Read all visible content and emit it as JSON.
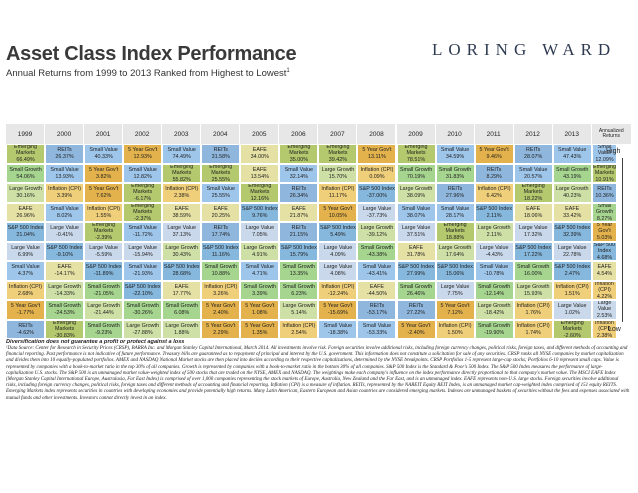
{
  "title": "Asset Class Index Performance",
  "subtitle": "Annual Returns from 1999 to 2013 Ranked from Highest to Lowest",
  "subtitle_sup": "1",
  "logo": "LORING WARD",
  "high_label": "High",
  "low_label": "Low",
  "annualized_header": "Annualized Returns",
  "colors": {
    "Emerging Markets": "#b4c86e",
    "REITs": "#8fb7dd",
    "Small Value": "#9ec5ea",
    "5 Year Gov't": "#e3b24c",
    "Small Growth": "#a6d58f",
    "Large Growth": "#cfe0a6",
    "Inflation (CPI)": "#f0cf7a",
    "EAFE": "#e5e0a3",
    "S&P 500 Index": "#86b7dc",
    "Large Value": "#c9d8ea"
  },
  "chart_data": {
    "type": "table",
    "years": [
      "1999",
      "2000",
      "2001",
      "2002",
      "2003",
      "2004",
      "2005",
      "2006",
      "2007",
      "2008",
      "2009",
      "2010",
      "2011",
      "2012",
      "2013"
    ],
    "columns": [
      [
        [
          "Emerging Markets",
          "66.49%"
        ],
        [
          "Small Growth",
          "54.06%"
        ],
        [
          "Large Growth",
          "30.16%"
        ],
        [
          "EAFE",
          "26.96%"
        ],
        [
          "S&P 500 Index",
          "21.04%"
        ],
        [
          "Large Value",
          "6.99%"
        ],
        [
          "Small Value",
          "4.37%"
        ],
        [
          "Inflation (CPI)",
          "2.68%"
        ],
        [
          "5 Year Gov't",
          "-1.77%"
        ],
        [
          "REITs",
          "-4.62%"
        ]
      ],
      [
        [
          "REITs",
          "26.37%"
        ],
        [
          "Small Value",
          "13.93%"
        ],
        [
          "Inflation (CPI)",
          "3.39%"
        ],
        [
          "Small Value",
          "8.02%"
        ],
        [
          "Large Value",
          "-0.41%"
        ],
        [
          "S&P 500 Index",
          "-9.10%"
        ],
        [
          "EAFE",
          "-14.17%"
        ],
        [
          "Large Growth",
          "-14.33%"
        ],
        [
          "Small Growth",
          "-24.53%"
        ],
        [
          "Emerging Markets",
          "-30.83%"
        ]
      ],
      [
        [
          "Small Value",
          "40.33%"
        ],
        [
          "5 Year Gov't",
          "3.82%"
        ],
        [
          "5 Year Gov't",
          "7.62%"
        ],
        [
          "Inflation (CPI)",
          "1.55%"
        ],
        [
          "Emerging Markets",
          "-2.39%"
        ],
        [
          "Large Value",
          "-5.59%"
        ],
        [
          "S&P 500 Index",
          "-11.89%"
        ],
        [
          "Small Growth",
          "-21.05%"
        ],
        [
          "Large Growth",
          "-21.44%"
        ],
        [
          "Small Growth",
          "-9.23%"
        ]
      ],
      [
        [
          "5 Year Gov't",
          "12.93%"
        ],
        [
          "Small Value",
          "12.82%"
        ],
        [
          "Emerging Markets",
          "-6.17%"
        ],
        [
          "Emerging Markets",
          "-2.37%"
        ],
        [
          "Small Value",
          "-11.72%"
        ],
        [
          "Large Value",
          "-15.94%"
        ],
        [
          "Small Value",
          "-21.93%"
        ],
        [
          "S&P 500 Index",
          "-22.10%"
        ],
        [
          "Small Growth",
          "-30.26%"
        ],
        [
          "Large Growth",
          "-27.88%"
        ]
      ],
      [
        [
          "Small Value",
          "74.49%"
        ],
        [
          "Emerging Markets",
          "55.82%"
        ],
        [
          "Inflation (CPI)",
          "2.38%"
        ],
        [
          "EAFE",
          "38.59%"
        ],
        [
          "Large Value",
          "37.13%"
        ],
        [
          "Large Growth",
          "30.43%"
        ],
        [
          "S&P 500 Index",
          "28.68%"
        ],
        [
          "EAFE",
          "17.77%"
        ],
        [
          "Small Growth",
          "6.08%"
        ],
        [
          "Large Growth",
          "1.88%"
        ]
      ],
      [
        [
          "REITs",
          "31.58%"
        ],
        [
          "Emerging Markets",
          "25.55%"
        ],
        [
          "Small Value",
          "25.55%"
        ],
        [
          "EAFE",
          "20.25%"
        ],
        [
          "REITs",
          "17.74%"
        ],
        [
          "S&P 500 Index",
          "11.16%"
        ],
        [
          "Small Growth",
          "10.88%"
        ],
        [
          "Inflation (CPI)",
          "3.26%"
        ],
        [
          "5 Year Gov't",
          "2.40%"
        ],
        [
          "5 Year Gov't",
          "2.29%"
        ]
      ],
      [
        [
          "EAFE",
          "34.00%"
        ],
        [
          "EAFE",
          "13.54%"
        ],
        [
          "Emerging Markets",
          "12.16%"
        ],
        [
          "S&P 500 Index",
          "9.76%"
        ],
        [
          "Large Value",
          "7.05%"
        ],
        [
          "Large Growth",
          "4.91%"
        ],
        [
          "Small Value",
          "4.71%"
        ],
        [
          "Small Growth",
          "3.39%"
        ],
        [
          "5 Year Gov't",
          "1.08%"
        ],
        [
          "5 Year Gov't",
          "1.35%"
        ]
      ],
      [
        [
          "Emerging Markets",
          "35.00%"
        ],
        [
          "Small Value",
          "32.14%"
        ],
        [
          "REITs",
          "26.34%"
        ],
        [
          "EAFE",
          "21.87%"
        ],
        [
          "REITs",
          "21.15%"
        ],
        [
          "S&P 500 Index",
          "15.79%"
        ],
        [
          "Small Growth",
          "13.35%"
        ],
        [
          "Small Growth",
          "6.23%"
        ],
        [
          "Large Growth",
          "5.14%"
        ],
        [
          "Inflation (CPI)",
          "2.54%"
        ]
      ],
      [
        [
          "Emerging Markets",
          "39.42%"
        ],
        [
          "Large Growth",
          "15.70%"
        ],
        [
          "Inflation (CPI)",
          "11.17%"
        ],
        [
          "5 Year Gov't",
          "10.05%"
        ],
        [
          "S&P 500 Index",
          "5.49%"
        ],
        [
          "Large Value",
          "4.09%"
        ],
        [
          "Large Value",
          "4.08%"
        ],
        [
          "Inflation (CPI)",
          "-12.24%"
        ],
        [
          "5 Year Gov't",
          "-15.69%"
        ],
        [
          "Small Value",
          "-18.38%"
        ]
      ],
      [
        [
          "5 Year Gov't",
          "13.11%"
        ],
        [
          "Inflation (CPI)",
          "0.09%"
        ],
        [
          "S&P 500 Index",
          "-37.00%"
        ],
        [
          "Large Value",
          "-37.73%"
        ],
        [
          "Large Growth",
          "-39.12%"
        ],
        [
          "Small Growth",
          "-43.38%"
        ],
        [
          "Small Value",
          "-43.41%"
        ],
        [
          "EAFE",
          "-44.50%"
        ],
        [
          "REITs",
          "-53.17%"
        ],
        [
          "Small Value",
          "-53.33%"
        ]
      ],
      [
        [
          "Emerging Markets",
          "78.51%"
        ],
        [
          "Small Growth",
          "70.19%"
        ],
        [
          "Large Growth",
          "38.09%"
        ],
        [
          "Small Value",
          "38.07%"
        ],
        [
          "Large Value",
          "37.51%"
        ],
        [
          "EAFE",
          "31.78%"
        ],
        [
          "S&P 500 Index",
          "27.99%"
        ],
        [
          "Small Growth",
          "26.46%"
        ],
        [
          "REITs",
          "27.22%"
        ],
        [
          "5 Year Gov't",
          "-2.40%"
        ]
      ],
      [
        [
          "Small Value",
          "34.59%"
        ],
        [
          "Small Growth",
          "31.83%"
        ],
        [
          "REITs",
          "27.96%"
        ],
        [
          "Small Value",
          "28.17%"
        ],
        [
          "Emerging Markets",
          "18.88%"
        ],
        [
          "Large Growth",
          "17.64%"
        ],
        [
          "S&P 500 Index",
          "15.06%"
        ],
        [
          "Large Value",
          "7.75%"
        ],
        [
          "5 Year Gov't",
          "7.12%"
        ],
        [
          "Inflation (CPI)",
          "1.50%"
        ]
      ],
      [
        [
          "5 Year Gov't",
          "9.46%"
        ],
        [
          "REITs",
          "8.29%"
        ],
        [
          "Inflation (CPI)",
          "6.42%"
        ],
        [
          "S&P 500 Index",
          "2.11%"
        ],
        [
          "Large Growth",
          "2.11%"
        ],
        [
          "Large Value",
          "-4.43%"
        ],
        [
          "Small Value",
          "-10.78%"
        ],
        [
          "Small Growth",
          "-12.14%"
        ],
        [
          "Large Growth",
          "-18.42%"
        ],
        [
          "Small Growth",
          "-19.90%"
        ]
      ],
      [
        [
          "REITs",
          "28.07%"
        ],
        [
          "Small Value",
          "20.57%"
        ],
        [
          "Emerging Markets",
          "18.22%"
        ],
        [
          "EAFE",
          "18.06%"
        ],
        [
          "Large Value",
          "17.32%"
        ],
        [
          "S&P 500 Index",
          "17.22%"
        ],
        [
          "Small Growth",
          "16.00%"
        ],
        [
          "Large Growth",
          "15.93%"
        ],
        [
          "Inflation (CPI)",
          "1.76%"
        ],
        [
          "Inflation (CPI)",
          "1.74%"
        ]
      ],
      [
        [
          "Small Value",
          "47.43%"
        ],
        [
          "Small Growth",
          "43.19%"
        ],
        [
          "Large Growth",
          "40.23%"
        ],
        [
          "EAFE",
          "33.42%"
        ],
        [
          "S&P 500 Index",
          "32.39%"
        ],
        [
          "Large Value",
          "22.78%"
        ],
        [
          "S&P 500 Index",
          "2.47%"
        ],
        [
          "Inflation (CPI)",
          "1.51%"
        ],
        [
          "Large Value",
          "1.02%"
        ],
        [
          "Emerging Markets",
          "-2.60%"
        ]
      ]
    ],
    "annualized": [
      [
        "Small Value",
        "12.09%"
      ],
      [
        "Emerging Markets",
        "10.91%"
      ],
      [
        "REITs",
        "10.36%"
      ],
      [
        "Small Growth",
        "8.27%"
      ],
      [
        "5 Year Gov't",
        "5.03%"
      ],
      [
        "S&P 500 Index",
        "4.68%"
      ],
      [
        "EAFE",
        "4.54%"
      ],
      [
        "Inflation (CPI)",
        "4.22%"
      ],
      [
        "Large Value",
        "2.53%"
      ],
      [
        "Inflation (CPI)",
        "2.38%"
      ]
    ]
  },
  "footnote_title": "Diversification does not guarantee a profit or protect against a loss",
  "footnote": "¹Data Source: Center for Research in Security Prices (CRSP), BARRA Inc. and Morgan Stanley Capital International, March 2014. All investments involve risk. Foreign securities involve additional risks, including foreign currency changes, political risks, foreign taxes, and different methods of accounting and financial reporting. Past performance is not indicative of future performance. Treasury bills are guaranteed as to repayment of principal and interest by the U.S. government. This information does not constitute a solicitation for sale of any securities. CRSP ranks all NYSE companies by market capitalization and divides them into 10 equally-populated portfolios. AMEX and NASDAQ National Market stocks are then placed into deciles according to their respective capitalizations, determined by the NYSE breakpoints. CRSP Portfolios 1-5 represent large-cap stocks; Portfolios 6-10 represent small caps. Value is represented by companies with a book-to-market ratio in the top 30% of all companies. Growth is represented by companies with a book-to-market ratio in the bottom 30% of all companies. S&P 500 Index is the Standard & Poor's 500 Index. The S&P 500 Index measures the performance of large-capitalization U.S. stocks. The S&P 500 is an unmanaged market value-weighted index of 500 stocks that are traded on the NYSE, AMEX and NASDAQ. The weightings make each company's influence on the index performance directly proportional to that company's market value. The MSCI EAFE Index (Morgan Stanley Capital International Europe, Australasia, Far East Index) is comprised of over 1,000 companies representing the stock markets of Europe, Australia, New Zealand and the Far East, and is an unmanaged index. EAFE represents non-U.S. large stocks. Foreign securities involve additional risks, including foreign currency changes, political risks, foreign taxes and different methods of accounting and financial reporting. Inflation (CPI) is a measure of inflation. REITs, represented by the NAREIT Equity REIT Index, is an unmanaged market cap-weighted index comprised of 151 equity REITS. Emerging Markets index represents securities in countries with developing economies and provide potentially high returns. Many Latin American, Eastern European and Asian countries are considered emerging markets. Indexes are unmanaged baskets of securities without the fees and expenses associated with mutual funds and other investments. Investors cannot directly invest in an index."
}
